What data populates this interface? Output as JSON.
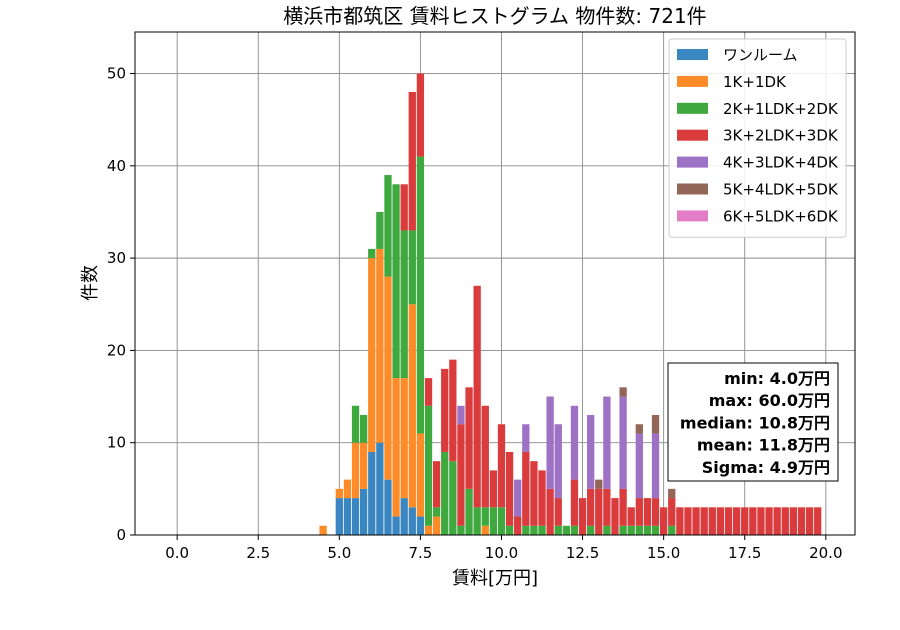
{
  "chart_data": {
    "type": "bar",
    "stacked": true,
    "title": "横浜市都筑区 賃料ヒストグラム 物件数: 721件",
    "xlabel": "賃料[万円]",
    "ylabel": "件数",
    "xlim": [
      -1.3,
      20.9
    ],
    "ylim": [
      0,
      54.5
    ],
    "xticks": [
      0.0,
      2.5,
      5.0,
      7.5,
      10.0,
      12.5,
      15.0,
      17.5,
      20.0
    ],
    "xtick_labels": [
      "0.0",
      "2.5",
      "5.0",
      "7.5",
      "10.0",
      "12.5",
      "15.0",
      "17.5",
      "20.0"
    ],
    "yticks": [
      0,
      10,
      20,
      30,
      40,
      50
    ],
    "ytick_labels": [
      "0",
      "10",
      "20",
      "30",
      "40",
      "50"
    ],
    "grid": true,
    "legend_position": "top-right",
    "bin_width": 0.25,
    "x": [
      3.5,
      3.75,
      4.0,
      4.25,
      4.5,
      4.75,
      5.0,
      5.25,
      5.5,
      5.75,
      6.0,
      6.25,
      6.5,
      6.75,
      7.0,
      7.25,
      7.5,
      7.75,
      8.0,
      8.25,
      8.5,
      8.75,
      9.0,
      9.25,
      9.5,
      9.75,
      10.0,
      10.25,
      10.5,
      10.75,
      11.0,
      11.25,
      11.5,
      11.75,
      12.0,
      12.25,
      12.5,
      12.75,
      13.0,
      13.25,
      13.5,
      13.75,
      14.0,
      14.25,
      14.5,
      14.75,
      15.0,
      15.25,
      15.5,
      15.75,
      16.0,
      16.25,
      16.5,
      16.75,
      17.0,
      17.25,
      17.5,
      17.75,
      18.0,
      18.25,
      18.5,
      18.75,
      19.0,
      19.25,
      19.5,
      19.75
    ],
    "series": [
      {
        "name": "ワンルーム",
        "color": "#3a86c0",
        "values": [
          0,
          0,
          0,
          0,
          0,
          0,
          4,
          4,
          4,
          5,
          9,
          10,
          6,
          2,
          4,
          3,
          2,
          0,
          0,
          0,
          0,
          0,
          0,
          0,
          0,
          0,
          0,
          0,
          0,
          0,
          0,
          0,
          0,
          0,
          0,
          0,
          0,
          0,
          0,
          0,
          0,
          0,
          0,
          0,
          0,
          0,
          0,
          0,
          0,
          0,
          0,
          0,
          0,
          0,
          0,
          0,
          0,
          0,
          0,
          0,
          0,
          0,
          0,
          0,
          0,
          0
        ]
      },
      {
        "name": "1K+1DK",
        "color": "#fd8b27",
        "values": [
          0,
          0,
          0,
          0,
          1,
          0,
          1,
          2,
          6,
          5,
          21,
          21,
          22,
          15,
          13,
          22,
          9,
          1,
          2,
          0,
          0,
          0,
          0,
          0,
          1,
          0,
          0,
          0,
          0,
          0,
          0,
          0,
          0,
          0,
          0,
          0,
          0,
          0,
          0,
          0,
          0,
          0,
          0,
          0,
          0,
          0,
          0,
          0,
          0,
          0,
          0,
          0,
          0,
          0,
          0,
          0,
          0,
          0,
          0,
          0,
          0,
          0,
          0,
          0,
          0,
          0
        ]
      },
      {
        "name": "2K+1LDK+2DK",
        "color": "#3fa83f",
        "values": [
          0,
          0,
          0,
          0,
          0,
          0,
          0,
          0,
          4,
          3,
          1,
          4,
          11,
          21,
          16,
          8,
          30,
          13,
          1,
          9,
          8,
          1,
          5,
          3,
          2,
          3,
          3,
          1,
          0,
          1,
          1,
          1,
          0,
          1,
          1,
          1,
          0,
          1,
          0,
          1,
          0,
          1,
          1,
          1,
          1,
          1,
          0,
          1,
          0,
          0,
          0,
          0,
          0,
          0,
          0,
          0,
          0,
          0,
          0,
          0,
          0,
          0,
          0,
          0,
          0,
          0
        ]
      },
      {
        "name": "3K+2LDK+3DK",
        "color": "#da3b3c",
        "values": [
          0,
          0,
          0,
          0,
          0,
          0,
          0,
          0,
          0,
          0,
          0,
          0,
          0,
          0,
          5,
          15,
          9,
          3,
          5,
          9,
          11,
          11,
          11,
          24,
          11,
          4,
          9,
          8,
          2,
          8,
          7,
          6,
          5,
          3,
          0,
          5,
          4,
          4,
          5,
          4,
          4,
          4,
          2,
          3,
          3,
          3,
          3,
          3,
          3,
          3,
          3,
          3,
          3,
          3,
          3,
          3,
          3,
          3,
          3,
          3,
          3,
          3,
          3,
          3,
          3,
          3
        ]
      },
      {
        "name": "4K+3LDK+4DK",
        "color": "#9d72c4",
        "values": [
          0,
          0,
          0,
          0,
          0,
          0,
          0,
          0,
          0,
          0,
          0,
          0,
          0,
          0,
          0,
          0,
          0,
          0,
          0,
          0,
          0,
          2,
          0,
          0,
          0,
          0,
          0,
          0,
          4,
          3,
          0,
          0,
          10,
          8,
          0,
          8,
          0,
          8,
          0,
          10,
          0,
          10,
          0,
          7,
          0,
          7,
          0,
          0,
          0,
          0,
          0,
          0,
          0,
          0,
          0,
          0,
          0,
          0,
          0,
          0,
          0,
          0,
          0,
          0,
          0,
          0
        ]
      },
      {
        "name": "5K+4LDK+5DK",
        "color": "#926757",
        "values": [
          0,
          0,
          0,
          0,
          0,
          0,
          0,
          0,
          0,
          0,
          0,
          0,
          0,
          0,
          0,
          0,
          0,
          0,
          0,
          0,
          0,
          0,
          0,
          0,
          0,
          0,
          0,
          0,
          0,
          0,
          0,
          0,
          0,
          0,
          0,
          0,
          0,
          0,
          1,
          0,
          0,
          1,
          0,
          1,
          0,
          2,
          0,
          1,
          0,
          0,
          0,
          0,
          0,
          0,
          0,
          0,
          0,
          0,
          0,
          0,
          0,
          0,
          0,
          0,
          0,
          0
        ]
      },
      {
        "name": "6K+5LDK+6DK",
        "color": "#e47dc7",
        "values": [
          0,
          0,
          0,
          0,
          0,
          0,
          0,
          0,
          0,
          0,
          0,
          0,
          0,
          0,
          0,
          0,
          0,
          0,
          0,
          0,
          0,
          0,
          0,
          0,
          0,
          0,
          0,
          0,
          0,
          0,
          0,
          0,
          0,
          0,
          0,
          0,
          0,
          0,
          0,
          0,
          0,
          0,
          0,
          0,
          0,
          0,
          0,
          0,
          0,
          0,
          0,
          0,
          0,
          0,
          0,
          0,
          0,
          0,
          0,
          0,
          0,
          0,
          0,
          0,
          0,
          0
        ]
      }
    ],
    "stats_box": {
      "position": "middle-right",
      "lines": [
        "min: 4.0万円",
        "max: 60.0万円",
        "median: 10.8万円",
        "mean: 11.8万円",
        "Sigma: 4.9万円"
      ]
    }
  }
}
